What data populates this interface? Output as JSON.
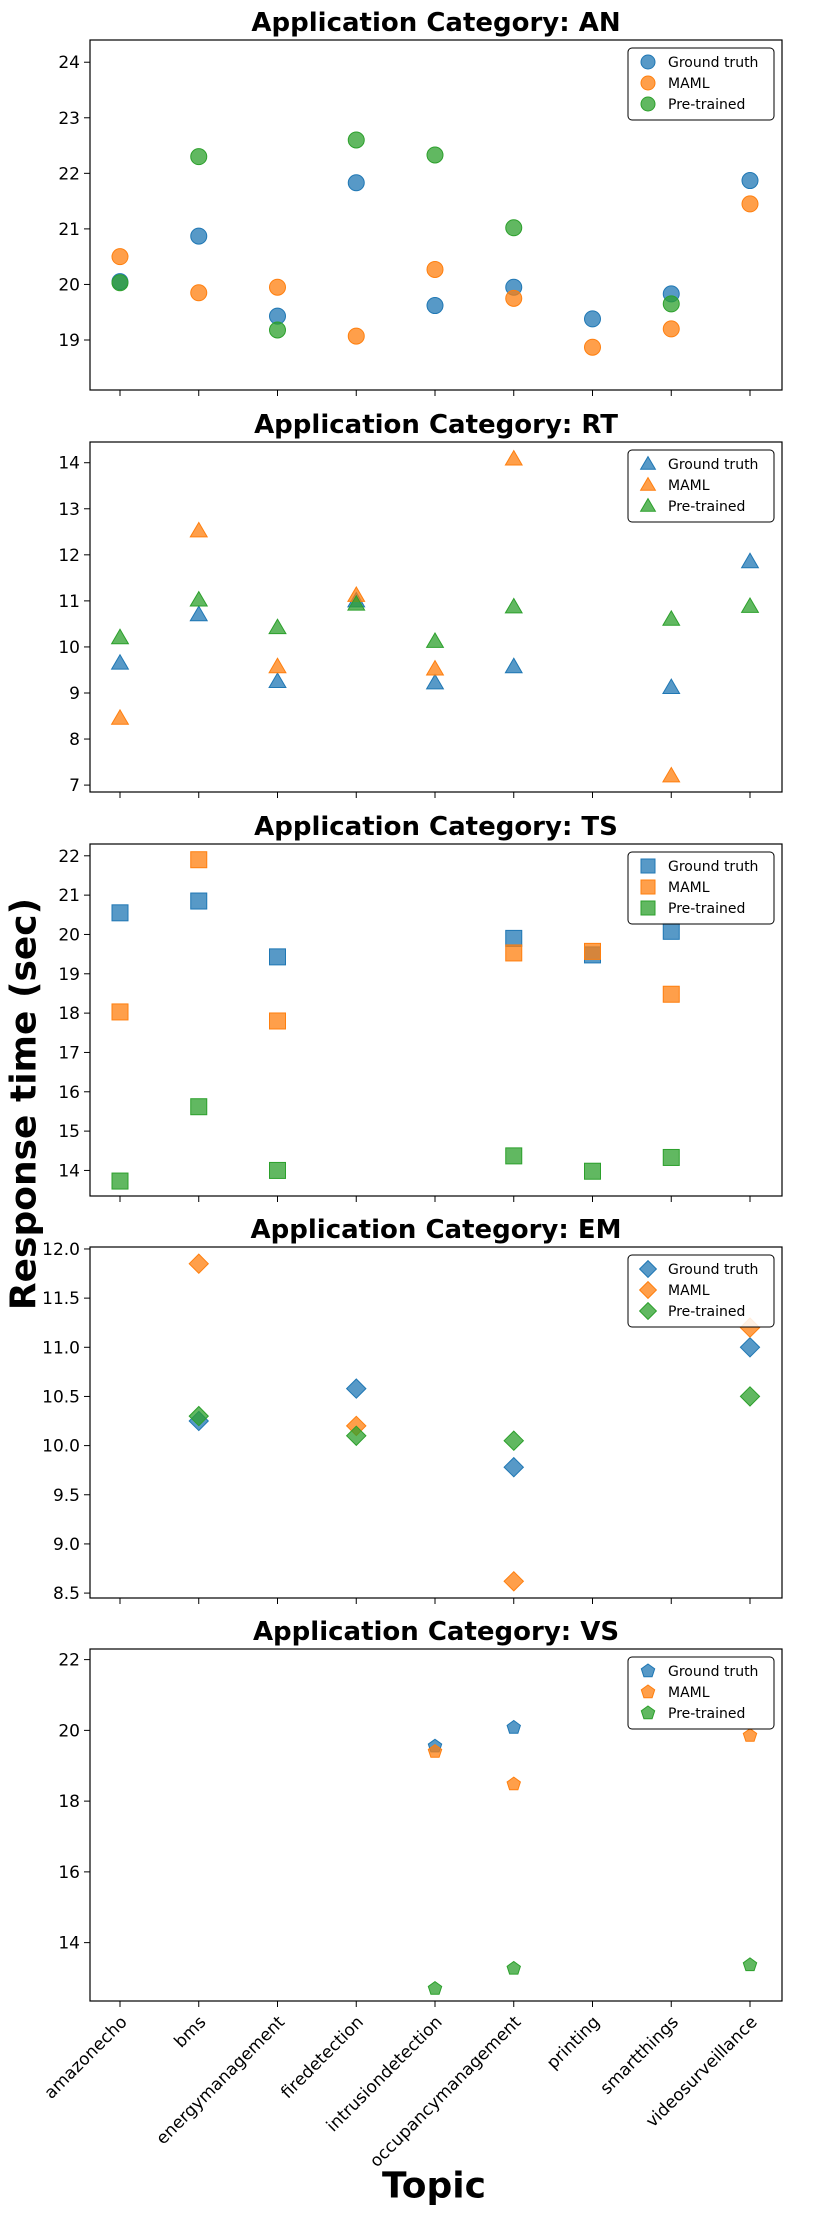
{
  "figure": {
    "ylabel": "Response time (sec)",
    "xlabel": "Topic"
  },
  "colors": {
    "Ground truth": "#1f77b4",
    "MAML": "#ff7f0e",
    "Pre-trained": "#2ca02c"
  },
  "chart_data": [
    {
      "type": "scatter",
      "title": "Application Category: AN",
      "marker": "circle",
      "categories": [
        "amazonecho",
        "bms",
        "energymanagement",
        "firedetection",
        "intrusiondetection",
        "occupancymanagement",
        "printing",
        "smartthings",
        "videosurveillance"
      ],
      "ylim": [
        18.1,
        24.4
      ],
      "yticks": [
        19,
        20,
        21,
        22,
        23,
        24
      ],
      "legend": "top-right",
      "series": [
        {
          "name": "Ground truth",
          "values": [
            20.05,
            20.87,
            19.43,
            21.83,
            19.62,
            19.95,
            19.38,
            19.83,
            21.87
          ]
        },
        {
          "name": "MAML",
          "values": [
            20.5,
            19.85,
            19.95,
            19.07,
            20.27,
            19.75,
            18.87,
            19.2,
            21.45
          ]
        },
        {
          "name": "Pre-trained",
          "values": [
            20.03,
            22.3,
            19.18,
            22.6,
            22.33,
            21.02,
            null,
            19.65,
            null
          ]
        }
      ]
    },
    {
      "type": "scatter",
      "title": "Application Category: RT",
      "marker": "triangle",
      "categories": [
        "amazonecho",
        "bms",
        "energymanagement",
        "firedetection",
        "intrusiondetection",
        "occupancymanagement",
        "printing",
        "smartthings",
        "videosurveillance"
      ],
      "ylim": [
        6.85,
        14.45
      ],
      "yticks": [
        7,
        8,
        9,
        10,
        11,
        12,
        13,
        14
      ],
      "legend": "top-right",
      "series": [
        {
          "name": "Ground truth",
          "values": [
            9.65,
            10.7,
            9.25,
            11.0,
            9.22,
            9.57,
            null,
            9.12,
            11.85
          ]
        },
        {
          "name": "MAML",
          "values": [
            8.45,
            12.52,
            9.57,
            11.12,
            9.52,
            14.08,
            null,
            7.2,
            null
          ]
        },
        {
          "name": "Pre-trained",
          "values": [
            10.2,
            11.02,
            10.42,
            10.93,
            10.12,
            10.87,
            null,
            10.6,
            10.88
          ]
        }
      ]
    },
    {
      "type": "scatter",
      "title": "Application Category: TS",
      "marker": "square",
      "categories": [
        "amazonecho",
        "bms",
        "energymanagement",
        "firedetection",
        "intrusiondetection",
        "occupancymanagement",
        "printing",
        "smartthings",
        "videosurveillance"
      ],
      "ylim": [
        13.35,
        22.3
      ],
      "yticks": [
        14,
        15,
        16,
        17,
        18,
        19,
        20,
        21,
        22
      ],
      "legend": "top-right",
      "series": [
        {
          "name": "Ground truth",
          "values": [
            20.55,
            20.85,
            19.43,
            null,
            null,
            19.9,
            19.48,
            20.08,
            null
          ]
        },
        {
          "name": "MAML",
          "values": [
            18.03,
            21.9,
            17.8,
            null,
            null,
            19.53,
            19.57,
            18.48,
            null
          ]
        },
        {
          "name": "Pre-trained",
          "values": [
            13.73,
            15.62,
            14.0,
            null,
            null,
            14.37,
            13.98,
            14.33,
            null
          ]
        }
      ]
    },
    {
      "type": "scatter",
      "title": "Application Category: EM",
      "marker": "diamond",
      "categories": [
        "amazonecho",
        "bms",
        "energymanagement",
        "firedetection",
        "intrusiondetection",
        "occupancymanagement",
        "printing",
        "smartthings",
        "videosurveillance"
      ],
      "ylim": [
        8.45,
        12.02
      ],
      "yticks": [
        8.5,
        9.0,
        9.5,
        10.0,
        10.5,
        11.0,
        11.5,
        12.0
      ],
      "legend": "top-right",
      "series": [
        {
          "name": "Ground truth",
          "values": [
            null,
            10.25,
            null,
            10.58,
            null,
            9.78,
            null,
            null,
            11.0
          ]
        },
        {
          "name": "MAML",
          "values": [
            null,
            11.85,
            null,
            10.2,
            null,
            8.62,
            null,
            null,
            11.2
          ]
        },
        {
          "name": "Pre-trained",
          "values": [
            null,
            10.3,
            null,
            10.1,
            null,
            10.05,
            null,
            null,
            10.5
          ]
        }
      ]
    },
    {
      "type": "scatter",
      "title": "Application Category: VS",
      "marker": "pentagon",
      "categories": [
        "amazonecho",
        "bms",
        "energymanagement",
        "firedetection",
        "intrusiondetection",
        "occupancymanagement",
        "printing",
        "smartthings",
        "videosurveillance"
      ],
      "ylim": [
        12.35,
        22.3
      ],
      "yticks": [
        14,
        16,
        18,
        20,
        22
      ],
      "xticks_visible": true,
      "legend": "top-right",
      "series": [
        {
          "name": "Ground truth",
          "values": [
            null,
            null,
            null,
            null,
            19.55,
            20.08,
            null,
            null,
            null
          ]
        },
        {
          "name": "MAML",
          "values": [
            null,
            null,
            null,
            null,
            19.4,
            18.48,
            null,
            null,
            19.85
          ]
        },
        {
          "name": "Pre-trained",
          "values": [
            null,
            null,
            null,
            null,
            12.7,
            13.27,
            null,
            null,
            13.37
          ]
        }
      ]
    }
  ]
}
